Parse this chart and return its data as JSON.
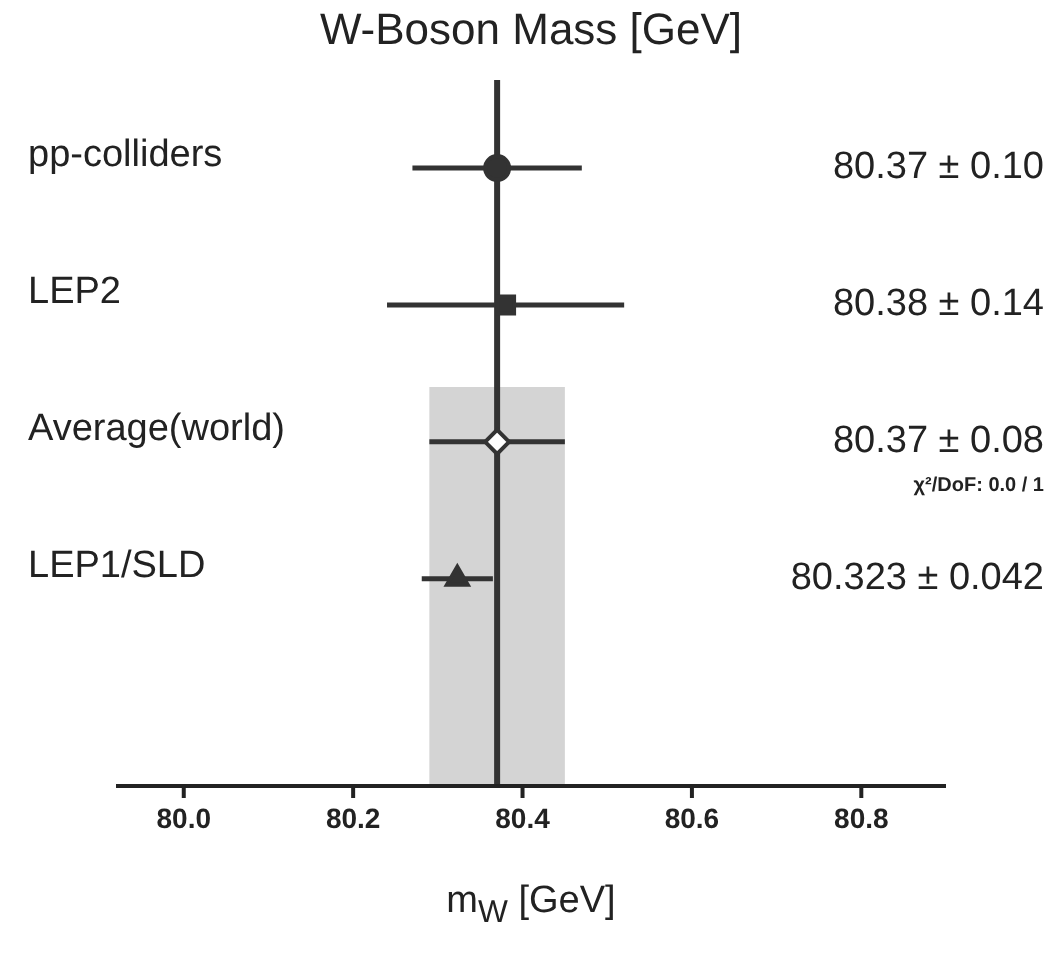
{
  "chart_data": {
    "type": "scatter",
    "orientation": "horizontal",
    "title": "W-Boson Mass  [GeV]",
    "xlabel": "m$_{W}$  [GeV]",
    "categories": [
      "pp-colliders",
      "LEP2",
      "Average(world)",
      "LEP1/SLD"
    ],
    "series": [
      {
        "color": "#333333",
        "marker": "circle",
        "values": [
          80.37,
          null,
          null,
          null
        ],
        "errors": [
          0.1,
          null,
          null,
          null
        ]
      },
      {
        "color": "#333333",
        "marker": "square",
        "values": [
          null,
          80.38,
          null,
          null
        ],
        "errors": [
          null,
          0.14,
          null,
          null
        ]
      },
      {
        "color": "#333333",
        "marker": "diamond",
        "values": [
          null,
          null,
          80.37,
          null
        ],
        "errors": [
          null,
          null,
          0.08,
          null
        ]
      },
      {
        "color": "#333333",
        "marker": "triangle",
        "values": [
          null,
          null,
          null,
          80.323
        ],
        "errors": [
          null,
          null,
          null,
          0.042
        ]
      }
    ],
    "xlim": [
      79.92,
      80.9
    ],
    "xticks": [
      {
        "value": 80.0,
        "label": "80.0"
      },
      {
        "value": 80.2,
        "label": "80.2"
      },
      {
        "value": 80.4,
        "label": "80.4"
      },
      {
        "value": 80.6,
        "label": "80.6"
      },
      {
        "value": 80.8,
        "label": "80.8"
      }
    ],
    "bands": [
      {
        "axis": "x",
        "from": 80.29,
        "to": 80.45,
        "color": "#d4d4d4"
      }
    ],
    "ref_lines": [
      {
        "axis": "x",
        "value": 80.37,
        "color": "#333333"
      }
    ],
    "annotations": [
      "80.37 ± 0.10",
      "80.38 ± 0.14",
      "80.37 ± 0.08",
      "χ²/DoF: 0.0 / 1",
      "80.323 ± 0.042"
    ],
    "grid": false,
    "legend": false
  }
}
